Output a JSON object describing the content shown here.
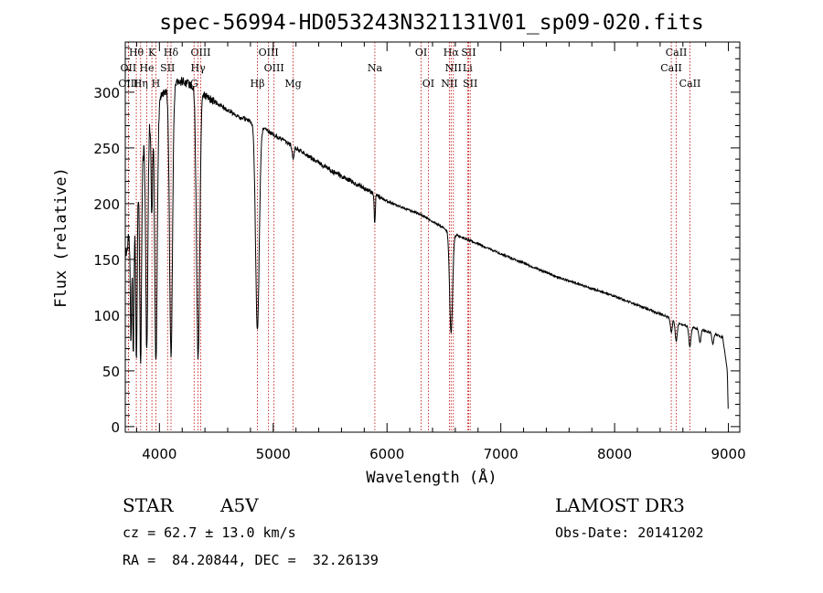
{
  "chart_data": {
    "type": "line",
    "title": "spec-56994-HD053243N321131V01_sp09-020.fits",
    "xlabel": "Wavelength (Å)",
    "ylabel": "Flux (relative)",
    "xlim": [
      3700,
      9100
    ],
    "ylim": [
      -5,
      345
    ],
    "xticks": [
      4000,
      5000,
      6000,
      7000,
      8000,
      9000
    ],
    "yticks": [
      0,
      50,
      100,
      150,
      200,
      250,
      300
    ],
    "continuum": [
      [
        3700,
        150
      ],
      [
        3800,
        215
      ],
      [
        3900,
        270
      ],
      [
        4000,
        295
      ],
      [
        4100,
        305
      ],
      [
        4200,
        310
      ],
      [
        4300,
        305
      ],
      [
        4500,
        290
      ],
      [
        4700,
        278
      ],
      [
        4850,
        272
      ],
      [
        5000,
        262
      ],
      [
        5200,
        250
      ],
      [
        5500,
        230
      ],
      [
        5800,
        214
      ],
      [
        6000,
        202
      ],
      [
        6300,
        190
      ],
      [
        6600,
        172
      ],
      [
        6800,
        164
      ],
      [
        7000,
        155
      ],
      [
        7500,
        134
      ],
      [
        8000,
        117
      ],
      [
        8500,
        97
      ],
      [
        8600,
        91
      ],
      [
        8800,
        86
      ],
      [
        8950,
        80
      ],
      [
        8990,
        50
      ],
      [
        9000,
        8
      ]
    ],
    "absorption_lines": [
      {
        "center": 3750,
        "depth": 110,
        "width": 6
      },
      {
        "center": 3771,
        "depth": 130,
        "width": 6
      },
      {
        "center": 3798,
        "depth": 150,
        "width": 7
      },
      {
        "center": 3835,
        "depth": 180,
        "width": 8
      },
      {
        "center": 3889,
        "depth": 200,
        "width": 9
      },
      {
        "center": 3933,
        "depth": 90,
        "width": 6
      },
      {
        "center": 3970,
        "depth": 230,
        "width": 11
      },
      {
        "center": 4102,
        "depth": 240,
        "width": 13
      },
      {
        "center": 4340,
        "depth": 240,
        "width": 14
      },
      {
        "center": 4861,
        "depth": 185,
        "width": 16
      },
      {
        "center": 5175,
        "depth": 12,
        "width": 8
      },
      {
        "center": 5892,
        "depth": 25,
        "width": 5
      },
      {
        "center": 6563,
        "depth": 90,
        "width": 13
      },
      {
        "center": 8498,
        "depth": 12,
        "width": 8
      },
      {
        "center": 8542,
        "depth": 18,
        "width": 9
      },
      {
        "center": 8662,
        "depth": 18,
        "width": 9
      },
      {
        "center": 8750,
        "depth": 12,
        "width": 8
      },
      {
        "center": 8863,
        "depth": 10,
        "width": 7
      }
    ],
    "spectral_lines": [
      {
        "label": "Hθ",
        "wavelength": 3797,
        "row": 1
      },
      {
        "label": "K",
        "wavelength": 3934,
        "row": 1
      },
      {
        "label": "Hδ",
        "wavelength": 4102,
        "row": 1
      },
      {
        "label": "OIII",
        "wavelength": 4363,
        "row": 1
      },
      {
        "label": "OIII",
        "wavelength": 4959,
        "row": 1
      },
      {
        "label": "OI",
        "wavelength": 6300,
        "row": 1
      },
      {
        "label": "Hα",
        "wavelength": 6563,
        "row": 1
      },
      {
        "label": "SII",
        "wavelength": 6717,
        "row": 1
      },
      {
        "label": "CaII",
        "wavelength": 8542,
        "row": 1
      },
      {
        "label": "OII",
        "wavelength": 3727,
        "row": 2
      },
      {
        "label": "He",
        "wavelength": 3889,
        "row": 2
      },
      {
        "label": "SII",
        "wavelength": 4072,
        "row": 2
      },
      {
        "label": "Hγ",
        "wavelength": 4340,
        "row": 2
      },
      {
        "label": "OIII",
        "wavelength": 5007,
        "row": 2
      },
      {
        "label": "Na",
        "wavelength": 5893,
        "row": 2
      },
      {
        "label": "NII",
        "wavelength": 6583,
        "row": 2
      },
      {
        "label": "Li",
        "wavelength": 6708,
        "row": 2
      },
      {
        "label": "CaII",
        "wavelength": 8498,
        "row": 2
      },
      {
        "label": "OIII",
        "wavelength": 3727,
        "row": 3
      },
      {
        "label": "Hη",
        "wavelength": 3835,
        "row": 3
      },
      {
        "label": "H",
        "wavelength": 3969,
        "row": 3
      },
      {
        "label": "G",
        "wavelength": 4305,
        "row": 3
      },
      {
        "label": "Hβ",
        "wavelength": 4861,
        "row": 3
      },
      {
        "label": "Mg",
        "wavelength": 5175,
        "row": 3
      },
      {
        "label": "OI",
        "wavelength": 6363,
        "row": 3
      },
      {
        "label": "NII",
        "wavelength": 6548,
        "row": 3
      },
      {
        "label": "SII",
        "wavelength": 6731,
        "row": 3
      },
      {
        "label": "CaII",
        "wavelength": 8662,
        "row": 3
      }
    ]
  },
  "info": {
    "object_class": "STAR",
    "subclass": "A5V",
    "survey": "LAMOST DR3",
    "cz_text": "cz = 62.7 ± 13.0 km/s",
    "obs_date_text": "Obs-Date: 20141202",
    "coords_text": "RA =  84.20844, DEC =  32.26139"
  }
}
